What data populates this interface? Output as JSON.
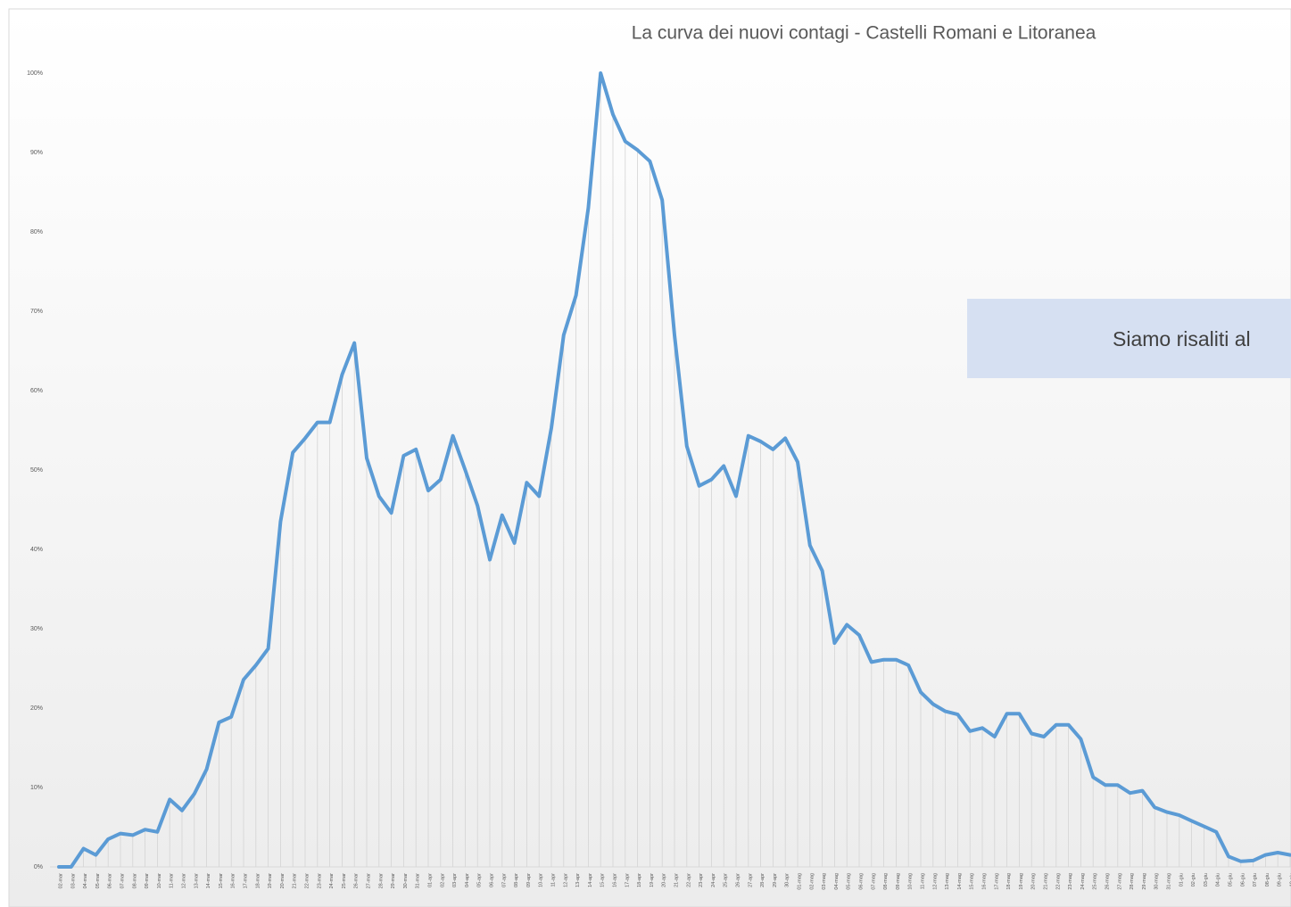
{
  "chart_data": {
    "type": "line",
    "title": "La curva dei nuovi contagi - Castelli Romani e Litoranea",
    "annotation": "Siamo risaliti al",
    "categories": [
      "02-mar",
      "03-mar",
      "04-mar",
      "05-mar",
      "06-mar",
      "07-mar",
      "08-mar",
      "09-mar",
      "10-mar",
      "11-mar",
      "12-mar",
      "13-mar",
      "14-mar",
      "15-mar",
      "16-mar",
      "17-mar",
      "18-mar",
      "19-mar",
      "20-mar",
      "21-mar",
      "22-mar",
      "23-mar",
      "24-mar",
      "25-mar",
      "26-mar",
      "27-mar",
      "28-mar",
      "29-mar",
      "30-mar",
      "31-mar",
      "01-apr",
      "02-apr",
      "03-apr",
      "04-apr",
      "05-apr",
      "06-apr",
      "07-apr",
      "08-apr",
      "09-apr",
      "10-apr",
      "11-apr",
      "12-apr",
      "13-apr",
      "14-apr",
      "15-apr",
      "16-apr",
      "17-apr",
      "18-apr",
      "19-apr",
      "20-apr",
      "21-apr",
      "22-apr",
      "23-apr",
      "24-apr",
      "25-apr",
      "26-apr",
      "27-apr",
      "28-apr",
      "29-apr",
      "30-apr",
      "01-mag",
      "02-mag",
      "03-mag",
      "04-mag",
      "05-mag",
      "06-mag",
      "07-mag",
      "08-mag",
      "09-mag",
      "10-mag",
      "11-mag",
      "12-mag",
      "13-mag",
      "14-mag",
      "15-mag",
      "16-mag",
      "17-mag",
      "18-mag",
      "19-mag",
      "20-mag",
      "21-mag",
      "22-mag",
      "23-mag",
      "24-mag",
      "25-mag",
      "26-mag",
      "27-mag",
      "28-mag",
      "29-mag",
      "30-mag",
      "31-mag",
      "01-giu",
      "02-giu",
      "03-giu",
      "04-giu",
      "05-giu",
      "06-giu",
      "07-giu",
      "08-giu",
      "09-giu",
      "10-giu"
    ],
    "series": [
      {
        "name": "Nuovi contagi",
        "color": "#5b9bd5",
        "values": [
          0,
          0,
          2.3,
          1.5,
          3.5,
          4.2,
          4,
          4.7,
          4.4,
          8.5,
          7.1,
          9.2,
          12.3,
          18.2,
          18.9,
          23.6,
          25.4,
          27.5,
          43.5,
          52.2,
          54,
          56,
          56,
          62,
          66,
          51.5,
          46.7,
          44.6,
          51.8,
          52.6,
          47.4,
          48.8,
          54.3,
          50,
          45.5,
          38.7,
          44.3,
          40.8,
          48.4,
          46.7,
          55.3,
          67,
          72,
          83,
          100,
          94.8,
          91.4,
          90.3,
          88.9,
          84,
          67,
          53,
          48,
          48.8,
          50.5,
          46.7,
          54.3,
          53.6,
          52.6,
          54,
          51,
          40.5,
          37.3,
          28.2,
          30.5,
          29.2,
          25.8,
          26.1,
          26.1,
          25.4,
          22,
          20.5,
          19.6,
          19.2,
          17.1,
          17.5,
          16.4,
          19.3,
          19.3,
          16.8,
          16.4,
          17.9,
          17.9,
          16.1,
          11.3,
          10.3,
          10.3,
          9.3,
          9.6,
          7.5,
          6.9,
          6.5,
          5.8,
          5.1,
          4.4,
          1.3,
          0.7,
          0.8,
          1.5,
          1.8,
          1.5
        ]
      }
    ],
    "ylim": [
      0,
      100
    ],
    "yticks": [
      {
        "value": 0,
        "label": "0%"
      },
      {
        "value": 10,
        "label": "10%"
      },
      {
        "value": 20,
        "label": "20%"
      },
      {
        "value": 30,
        "label": "30%"
      },
      {
        "value": 40,
        "label": "40%"
      },
      {
        "value": 50,
        "label": "50%"
      },
      {
        "value": 60,
        "label": "60%"
      },
      {
        "value": 70,
        "label": "70%"
      },
      {
        "value": 80,
        "label": "80%"
      },
      {
        "value": 90,
        "label": "90%"
      },
      {
        "value": 100,
        "label": "100%"
      }
    ],
    "drop_lines": true
  }
}
